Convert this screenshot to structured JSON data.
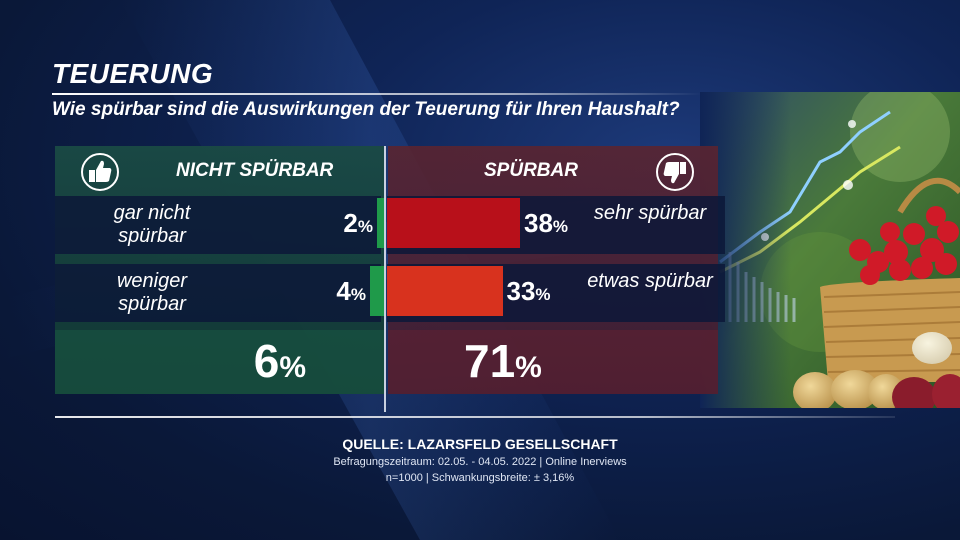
{
  "title": "TEUERUNG",
  "subtitle": "Wie spürbar sind die Auswirkungen der Teuerung für Ihren Haushalt?",
  "left_header": "NICHT SPÜRBAR",
  "right_header": "SPÜRBAR",
  "rows": [
    {
      "left_label": "gar nicht spürbar",
      "left_value": "2",
      "right_label": "sehr spürbar",
      "right_value": "38"
    },
    {
      "left_label": "weniger spürbar",
      "left_value": "4",
      "right_label": "etwas spürbar",
      "right_value": "33"
    }
  ],
  "totals": {
    "left": "6",
    "right": "71"
  },
  "percent_sign": "%",
  "source": {
    "line1": "QUELLE:  LAZARSFELD GESELLSCHAFT",
    "line2": "Befragungszeitraum: 02.05. - 04.05. 2022 | Online Inerviews",
    "line3": "n=1000 |  Schwankungsbreite: ± 3,16%"
  },
  "colors": {
    "left_bar": "#1f9a4a",
    "right_bar_1": "#b8101a",
    "right_bar_2": "#d8321e"
  },
  "icons": {
    "left": "thumbs-up-icon",
    "right": "thumbs-down-icon"
  },
  "chart_data": {
    "type": "bar",
    "title": "Wie spürbar sind die Auswirkungen der Teuerung für Ihren Haushalt?",
    "series": [
      {
        "name": "NICHT SPÜRBAR",
        "categories": [
          "gar nicht spürbar",
          "weniger spürbar"
        ],
        "values": [
          2,
          4
        ],
        "total": 6
      },
      {
        "name": "SPÜRBAR",
        "categories": [
          "sehr spürbar",
          "etwas spürbar"
        ],
        "values": [
          38,
          33
        ],
        "total": 71
      }
    ],
    "unit": "%"
  }
}
